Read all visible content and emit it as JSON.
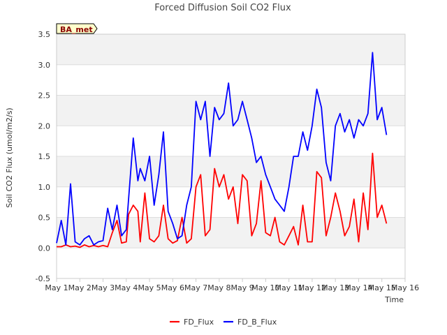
{
  "chart_data": {
    "type": "line",
    "title": "Forced Diffusion Soil CO2 Flux",
    "xlabel": "Time",
    "ylabel": "Soil CO2 Flux (umol/m2/s)",
    "ylim": [
      -0.5,
      3.5
    ],
    "yticks": [
      -0.5,
      0.0,
      0.5,
      1.0,
      1.5,
      2.0,
      2.5,
      3.0,
      3.5
    ],
    "ytick_labels": [
      "-0.5",
      "0.0",
      "0.5",
      "1.0",
      "1.5",
      "2.0",
      "2.5",
      "3.0",
      "3.5"
    ],
    "xlim": [
      1,
      16
    ],
    "xticks": [
      1,
      2,
      3,
      4,
      5,
      6,
      7,
      8,
      9,
      10,
      11,
      12,
      13,
      14,
      15,
      16
    ],
    "xtick_labels": [
      "May 1",
      "May 2",
      "May 3",
      "May 4",
      "May 5",
      "May 6",
      "May 7",
      "May 8",
      "May 9",
      "May 10",
      "May 11",
      "May 12",
      "May 13",
      "May 14",
      "May 15",
      "May 16"
    ],
    "annotation": "BA_met",
    "legend_position": "bottom-center",
    "grid": true,
    "series": [
      {
        "name": "FD_Flux",
        "color": "#ff0000",
        "x": [
          1.0,
          1.2,
          1.4,
          1.6,
          1.8,
          2.0,
          2.2,
          2.4,
          2.6,
          2.8,
          3.0,
          3.2,
          3.4,
          3.6,
          3.8,
          4.0,
          4.1,
          4.3,
          4.5,
          4.6,
          4.8,
          5.0,
          5.2,
          5.4,
          5.6,
          5.8,
          6.0,
          6.2,
          6.4,
          6.6,
          6.8,
          7.0,
          7.2,
          7.4,
          7.6,
          7.8,
          8.0,
          8.2,
          8.4,
          8.6,
          8.8,
          9.0,
          9.2,
          9.4,
          9.6,
          9.8,
          10.0,
          10.2,
          10.4,
          10.6,
          10.8,
          11.0,
          11.2,
          11.4,
          11.6,
          11.8,
          12.0,
          12.2,
          12.4,
          12.6,
          12.8,
          13.0,
          13.2,
          13.4,
          13.6,
          13.8,
          14.0,
          14.2,
          14.4,
          14.6,
          14.8,
          15.0,
          15.2
        ],
        "values": [
          0.02,
          0.02,
          0.05,
          0.02,
          0.03,
          0.01,
          0.05,
          0.02,
          0.04,
          0.02,
          0.04,
          0.02,
          0.25,
          0.45,
          0.08,
          0.1,
          0.55,
          0.7,
          0.6,
          0.1,
          0.9,
          0.15,
          0.1,
          0.2,
          0.7,
          0.15,
          0.08,
          0.12,
          0.5,
          0.08,
          0.15,
          1.0,
          1.2,
          0.2,
          0.3,
          1.3,
          1.0,
          1.2,
          0.8,
          1.0,
          0.4,
          1.2,
          1.1,
          0.2,
          0.4,
          1.1,
          0.25,
          0.2,
          0.5,
          0.1,
          0.05,
          0.2,
          0.35,
          0.05,
          0.7,
          0.1,
          0.1,
          1.25,
          1.15,
          0.2,
          0.5,
          0.9,
          0.6,
          0.2,
          0.35,
          0.8,
          0.1,
          0.9,
          0.3,
          1.55,
          0.5,
          0.7,
          0.4
        ]
      },
      {
        "name": "FD_B_Flux",
        "color": "#0000ff",
        "x": [
          1.0,
          1.2,
          1.4,
          1.6,
          1.8,
          2.0,
          2.2,
          2.4,
          2.6,
          2.8,
          3.0,
          3.2,
          3.4,
          3.6,
          3.8,
          4.0,
          4.1,
          4.3,
          4.5,
          4.6,
          4.8,
          5.0,
          5.2,
          5.4,
          5.6,
          5.8,
          6.0,
          6.2,
          6.4,
          6.6,
          6.8,
          7.0,
          7.2,
          7.4,
          7.6,
          7.8,
          8.0,
          8.2,
          8.4,
          8.6,
          8.8,
          9.0,
          9.2,
          9.4,
          9.6,
          9.8,
          10.0,
          10.2,
          10.4,
          10.6,
          10.8,
          11.0,
          11.2,
          11.4,
          11.6,
          11.8,
          12.0,
          12.2,
          12.4,
          12.6,
          12.8,
          13.0,
          13.2,
          13.4,
          13.6,
          13.8,
          14.0,
          14.2,
          14.4,
          14.6,
          14.8,
          15.0,
          15.2
        ],
        "values": [
          0.08,
          0.45,
          0.05,
          1.05,
          0.1,
          0.05,
          0.15,
          0.2,
          0.05,
          0.1,
          0.12,
          0.65,
          0.3,
          0.7,
          0.2,
          0.3,
          0.8,
          1.8,
          1.1,
          1.3,
          1.1,
          1.5,
          0.7,
          1.2,
          1.9,
          0.6,
          0.4,
          0.15,
          0.2,
          0.7,
          1.0,
          2.4,
          2.1,
          2.4,
          1.5,
          2.3,
          2.1,
          2.2,
          2.7,
          2.0,
          2.1,
          2.4,
          2.1,
          1.8,
          1.4,
          1.5,
          1.2,
          1.0,
          0.8,
          0.7,
          0.6,
          1.0,
          1.5,
          1.5,
          1.9,
          1.6,
          2.0,
          2.6,
          2.3,
          1.4,
          1.1,
          2.0,
          2.2,
          1.9,
          2.1,
          1.8,
          2.1,
          2.0,
          2.2,
          3.2,
          2.1,
          2.3,
          1.85
        ]
      }
    ]
  }
}
